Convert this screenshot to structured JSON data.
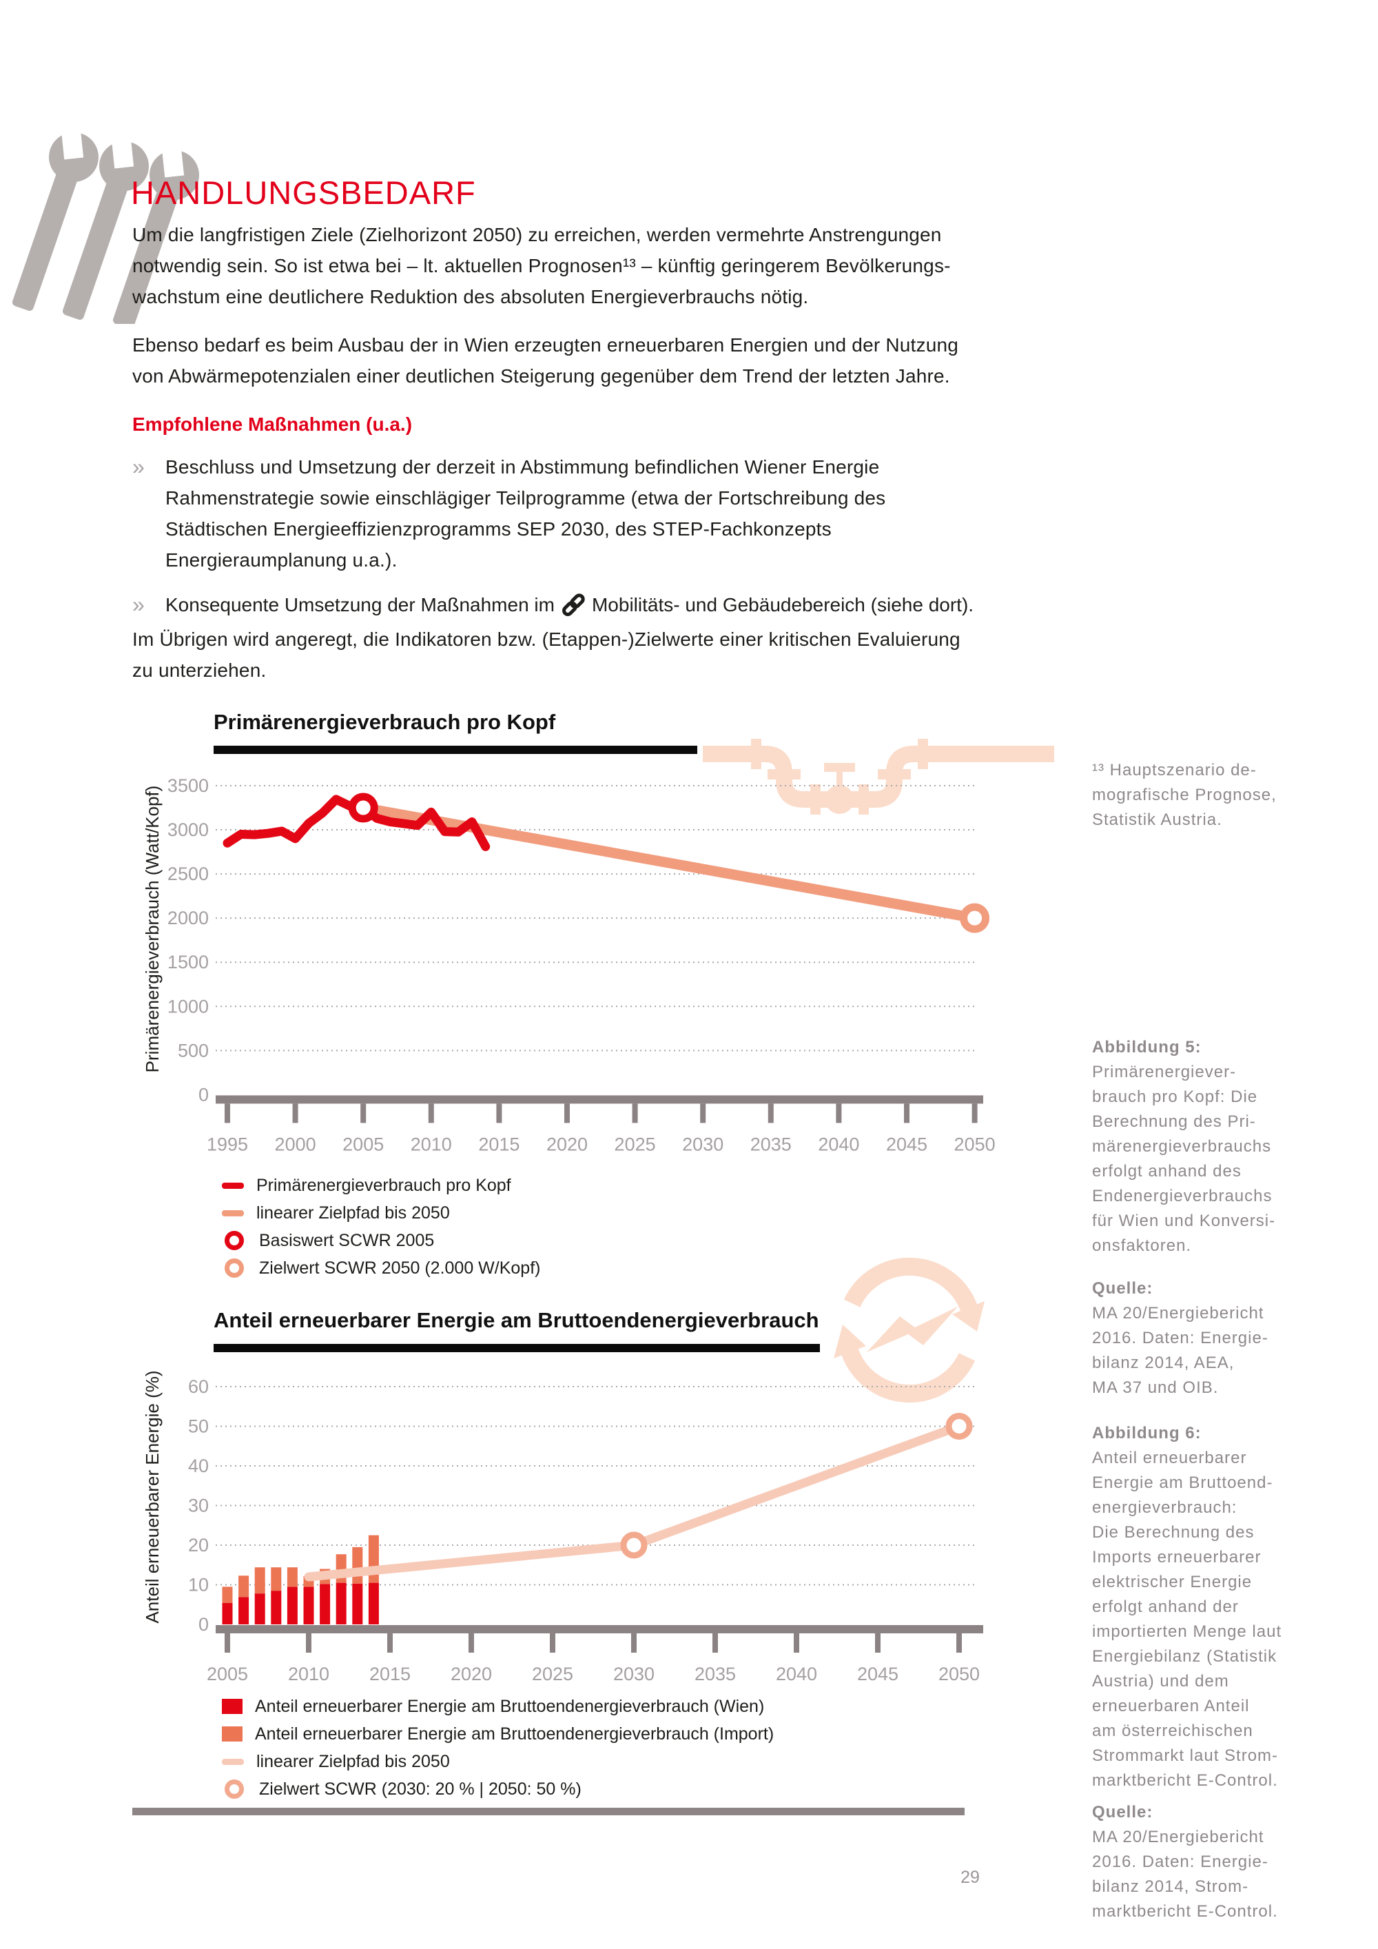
{
  "page": {
    "number": "29"
  },
  "header": {
    "title": "HANDLUNGSBEDARF"
  },
  "intro": {
    "para1": "Um die langfristigen Ziele (Zielhorizont 2050) zu erreichen, werden vermehrte Anstrengungen\nnotwendig sein. So ist etwa bei – lt. aktuellen Prognosen¹³ – künftig geringerem Bevölkerungs-\nwachstum eine deutlichere Reduktion des absoluten Energieverbrauchs nötig.",
    "para2": "Ebenso bedarf es beim Ausbau der in Wien erzeugten erneuerbaren Energien und der Nutzung\nvon Abwärmepotenzialen einer deutlichen Steigerung gegenüber dem Trend der letzten Jahre."
  },
  "measures": {
    "heading": "Empfohlene Maßnahmen (u.a.)",
    "bullet1": "Beschluss und Umsetzung der derzeit in Abstimmung befindlichen Wiener Energie\nRahmenstrategie sowie einschlägiger Teilprogramme (etwa der Fortschreibung des\nStädtischen Energieeffizienzprogramms SEP 2030, des STEP-Fachkonzepts\nEnergieraumplanung u.a.).",
    "bullet2_pre": "Konsequente Umsetzung der Maßnahmen im",
    "bullet2_post": "Mobilitäts- und Gebäudebereich (siehe dort).",
    "closing": "Im Übrigen wird angeregt, die Indikatoren bzw. (Etappen-)Zielwerte einer kritischen Evaluierung\nzu unterziehen."
  },
  "chart_data": [
    {
      "type": "line",
      "title": "Primärenergieverbrauch pro Kopf",
      "ylabel": "Primärenergieverbrauch (Watt/Kopf)",
      "ylim": [
        0,
        3500
      ],
      "ytick_step": 500,
      "xticks": [
        1995,
        2000,
        2005,
        2010,
        2015,
        2020,
        2025,
        2030,
        2035,
        2040,
        2045,
        2050
      ],
      "grid": "dotted",
      "series": [
        {
          "name": "linearer Zielpfad bis 2050",
          "color_key": "salmon",
          "x": [
            2005,
            2050
          ],
          "values": [
            3250,
            2000
          ]
        },
        {
          "name": "Primärenergieverbrauch pro Kopf",
          "color_key": "accent_red",
          "x": [
            1995,
            1996,
            1997,
            1998,
            1999,
            2000,
            2001,
            2002,
            2003,
            2004,
            2005,
            2006,
            2007,
            2008,
            2009,
            2010,
            2011,
            2012,
            2013,
            2014
          ],
          "values": [
            2850,
            2950,
            2945,
            2960,
            2985,
            2900,
            3075,
            3190,
            3345,
            3270,
            3250,
            3130,
            3090,
            3070,
            3050,
            3200,
            2980,
            2975,
            3090,
            2810
          ]
        }
      ],
      "markers": [
        {
          "name": "Basiswert SCWR 2005",
          "x": 2005,
          "value": 3250,
          "color_key": "accent_red"
        },
        {
          "name": "Zielwert SCWR 2050 (2.000 W/Kopf)",
          "x": 2050,
          "value": 2000,
          "color_key": "salmon"
        }
      ],
      "legend": [
        {
          "label": "Primärenergieverbrauch pro Kopf"
        },
        {
          "label": "linearer Zielpfad bis 2050"
        },
        {
          "label": "Basiswert SCWR 2005"
        },
        {
          "label": "Zielwert SCWR 2050 (2.000 W/Kopf)"
        }
      ]
    },
    {
      "type": "bar",
      "title": "Anteil erneuerbarer Energie am Bruttoendenergieverbrauch",
      "ylabel": "Anteil erneuerbarer Energie (%)",
      "ylim": [
        0,
        60
      ],
      "ytick_step": 10,
      "xticks": [
        2005,
        2010,
        2015,
        2020,
        2025,
        2030,
        2035,
        2040,
        2045,
        2050
      ],
      "grid": "dotted",
      "bar_years": [
        2005,
        2006,
        2007,
        2008,
        2009,
        2010,
        2011,
        2012,
        2013,
        2014
      ],
      "bars": [
        {
          "name": "Anteil erneuerbarer Energie am Bruttoendenergieverbrauch (Wien)",
          "color_key": "accent_red",
          "values": [
            5.4,
            6.9,
            7.8,
            8.5,
            9.5,
            9.5,
            10.2,
            10.5,
            10.3,
            10.5
          ]
        },
        {
          "name": "Anteil erneuerbarer Energie am Bruttoendenergieverbrauch (Import)",
          "color_key": "orange",
          "values": [
            4.1,
            5.4,
            6.6,
            5.9,
            4.9,
            2.7,
            3.8,
            7.2,
            9.2,
            12.0
          ]
        }
      ],
      "target_line": {
        "name": "linearer Zielpfad bis 2050",
        "color_key": "pale_line",
        "x": [
          2010,
          2030,
          2050
        ],
        "values": [
          12,
          20,
          50
        ]
      },
      "markers": [
        {
          "name": "Zielwert SCWR 2030",
          "x": 2030,
          "value": 20,
          "color_key": "pale_ring"
        },
        {
          "name": "Zielwert SCWR 2050",
          "x": 2050,
          "value": 50,
          "color_key": "pale_ring"
        }
      ],
      "legend": [
        {
          "label": "Anteil erneuerbarer Energie am Bruttoendenergieverbrauch (Wien)"
        },
        {
          "label": "Anteil erneuerbarer Energie am Bruttoendenergieverbrauch (Import)"
        },
        {
          "label": "linearer Zielpfad bis 2050"
        },
        {
          "label": "Zielwert SCWR (2030: 20 % | 2050: 50 %)"
        }
      ]
    }
  ],
  "sidebar": {
    "footnote": "¹³ Hauptszenario de-\nmografische Prognose,\nStatistik Austria.",
    "fig5_heading": "Abbildung 5:",
    "fig5_body": "Primärenergiever-\nbrauch pro Kopf: Die\nBerechnung des Pri-\nmärenergieverbrauchs\nerfolgt anhand des\nEndenergieverbrauchs\nfür Wien und Konversi-\nonsfaktoren.",
    "source5_heading": "Quelle:",
    "source5_body": "MA 20/Energiebericht\n2016. Daten: Energie-\nbilanz 2014, AEA,\nMA 37 und OIB.",
    "fig6_heading": "Abbildung 6:",
    "fig6_body": "Anteil erneuerbarer\nEnergie am Bruttoend-\nenergieverbrauch:\nDie Berechnung des\nImports erneuerbarer\nelektrischer Energie\nerfolgt anhand der\nimportierten Menge laut\nEnergiebilanz (Statistik\nAustria) und dem\nerneuerbaren Anteil\nam österreichischen\nStrommarkt laut Strom-\nmarktbericht E-Control.",
    "source6_heading": "Quelle:",
    "source6_body": "MA 20/Energiebericht\n2016. Daten: Energie-\nbilanz 2014, Strom-\nmarktbericht E-Control."
  },
  "colors": {
    "heading_red": "#e2001a",
    "accent_red": "#e30615",
    "salmon": "#f19c7d",
    "orange": "#ec7554",
    "pale_line": "#f7cab8",
    "pale_ring": "#f2a98e",
    "illustration_peach": "#fbdccb",
    "axis_gray": "#8b8284",
    "tick_label_gray": "#a5a0a2",
    "text_black": "#1d1d1b",
    "sidebar_gray": "#8f898b",
    "wrench_gray": "#b5b0ad",
    "divider_gray": "#8d8486"
  }
}
